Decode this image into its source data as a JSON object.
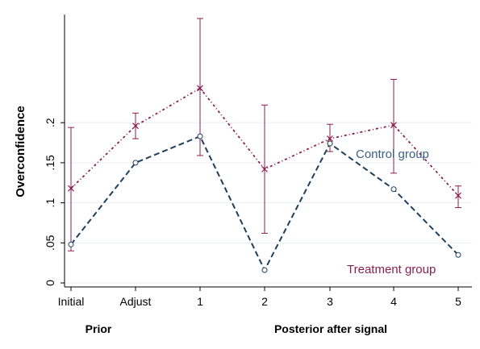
{
  "chart_data": {
    "type": "line",
    "title": "",
    "ylabel": "Overconfidence",
    "xlabel": "",
    "categories": [
      "Initial",
      "Adjust",
      "1",
      "2",
      "3",
      "4",
      "5"
    ],
    "x_groups": [
      {
        "label": "Prior",
        "categories": [
          "Initial",
          "Adjust"
        ]
      },
      {
        "label": "Posterior after signal",
        "categories": [
          "1",
          "2",
          "3",
          "4",
          "5"
        ]
      }
    ],
    "ylim": [
      -0.005,
      0.335
    ],
    "yticks": [
      0,
      0.05,
      0.1,
      0.15,
      0.2
    ],
    "ytick_labels": [
      "0",
      ".05",
      ".1",
      ".15",
      ".2"
    ],
    "grid": true,
    "legend": "none",
    "series": [
      {
        "name": "Control group",
        "color": "#1f3f5b",
        "marker": "circle",
        "values": [
          0.048,
          0.15,
          0.183,
          0.016,
          0.174,
          0.117,
          0.035
        ]
      },
      {
        "name": "Treatment group",
        "color": "#8b1f4b",
        "marker": "x",
        "values": [
          0.118,
          0.196,
          0.243,
          0.142,
          0.18,
          0.197,
          0.109
        ],
        "ci_low": [
          0.04,
          0.18,
          0.159,
          0.062,
          0.164,
          0.137,
          0.094
        ],
        "ci_high": [
          0.194,
          0.212,
          0.33,
          0.222,
          0.198,
          0.254,
          0.121
        ]
      }
    ],
    "annotations": [
      {
        "text": "Control group",
        "series": "Control group",
        "color": "#3d5f82"
      },
      {
        "text": "Treatment group",
        "series": "Treatment group",
        "color": "#8b1f4b"
      }
    ]
  }
}
